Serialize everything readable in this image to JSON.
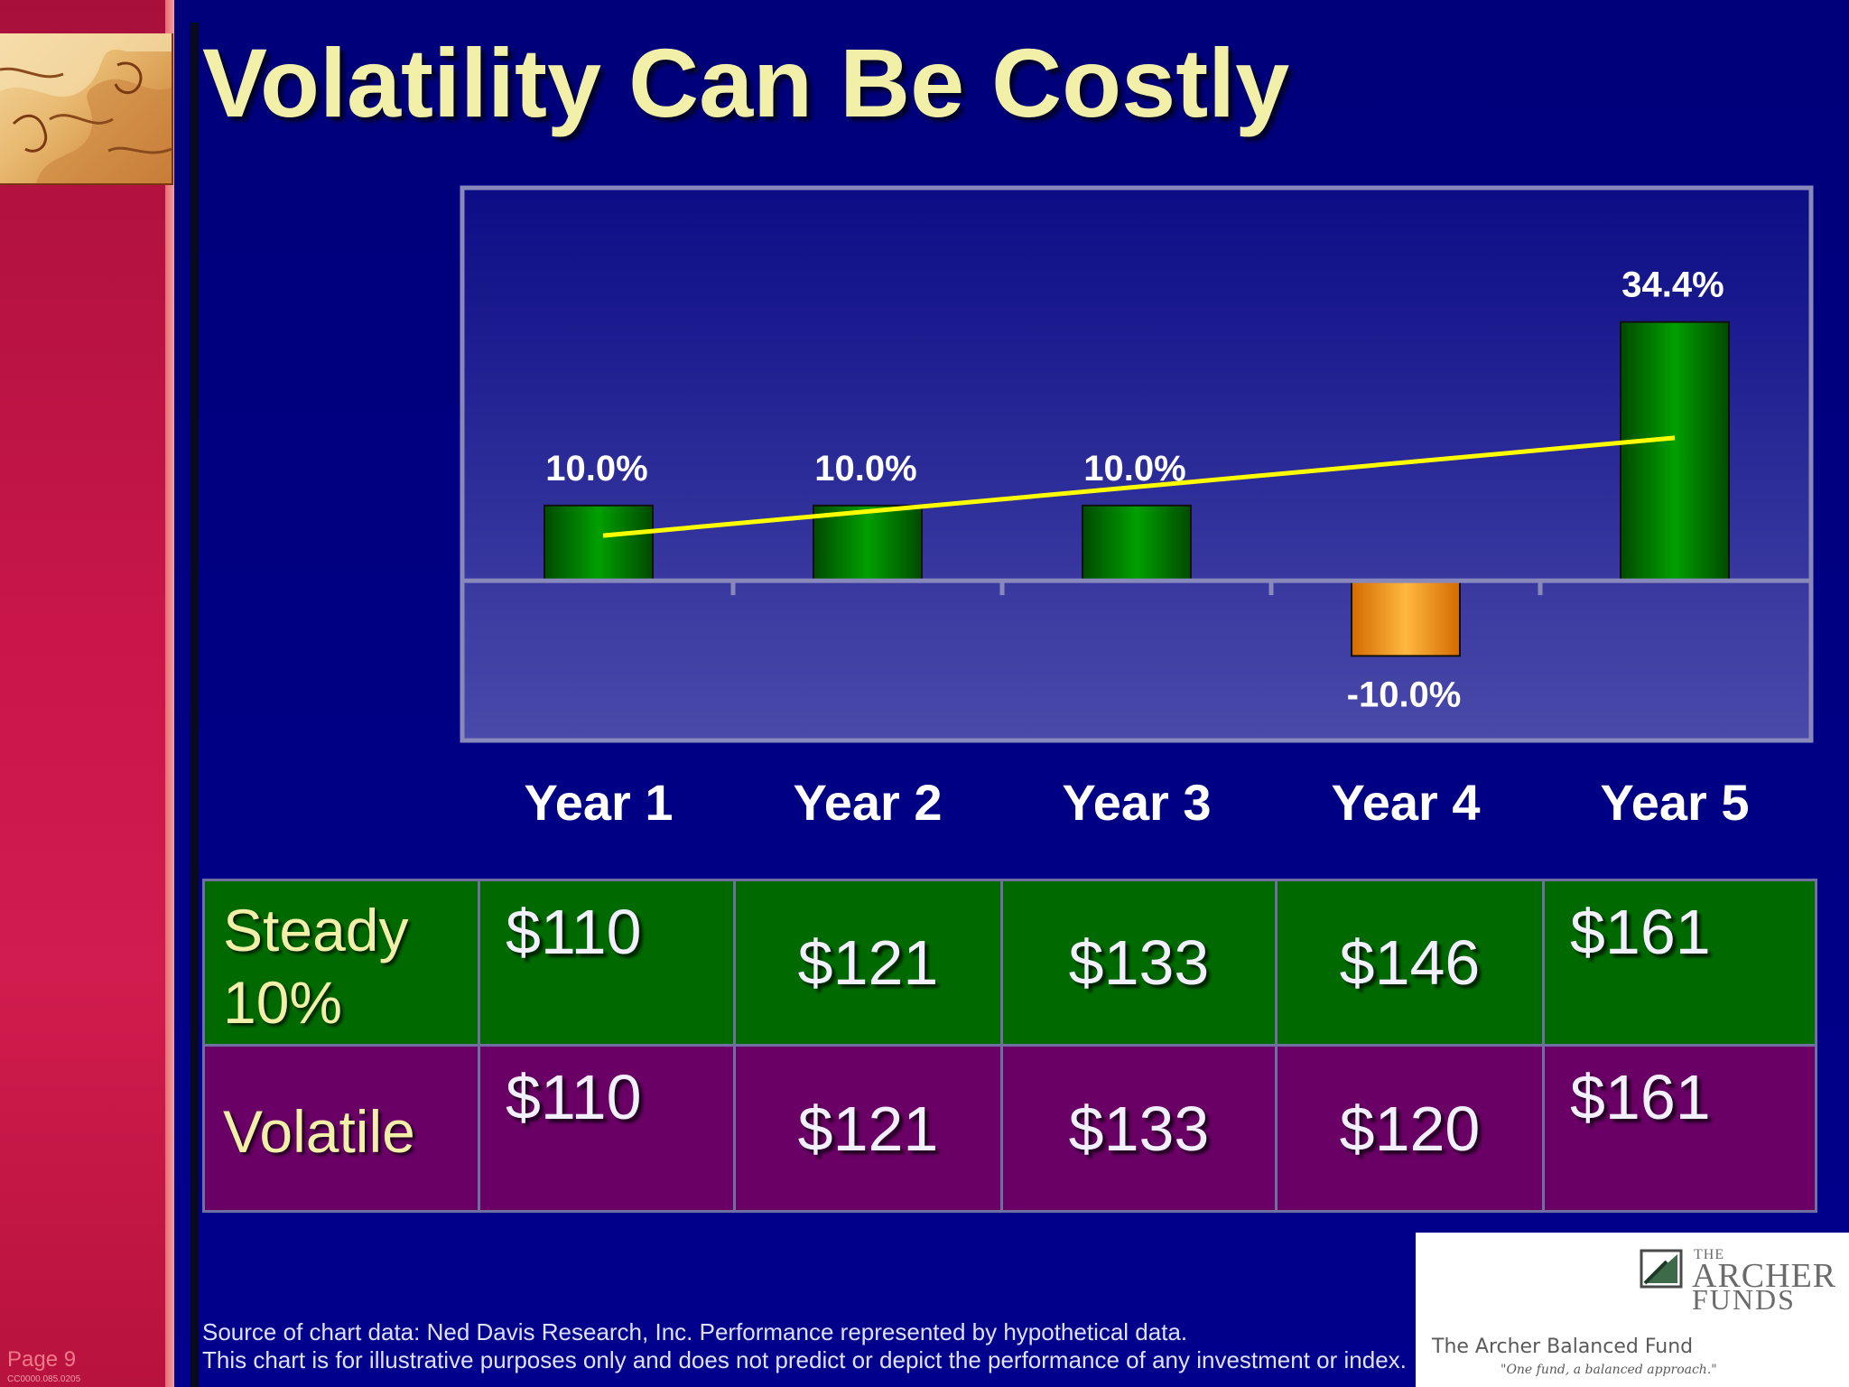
{
  "slide": {
    "title": "Volatility Can Be Costly",
    "page_label": "Page 9",
    "doc_code": "CC0000.085.0205"
  },
  "chart_data": {
    "type": "bar",
    "categories": [
      "Year 1",
      "Year 2",
      "Year 3",
      "Year 4",
      "Year 5"
    ],
    "values": [
      10.0,
      10.0,
      10.0,
      -10.0,
      34.4
    ],
    "data_labels": [
      "10.0%",
      "10.0%",
      "10.0%",
      "-10.0%",
      "34.4%"
    ],
    "ylim": [
      -21,
      52
    ],
    "bar_colors": [
      "#007000",
      "#007000",
      "#007000",
      "#ff9a10",
      "#007000"
    ],
    "trend_line": {
      "start": 6.0,
      "end": 19.0,
      "color": "#ffff00"
    },
    "grid": false,
    "legend": "none"
  },
  "table": {
    "rows": [
      {
        "label_line1": "Steady",
        "label_line2": "10%",
        "values": [
          "$110",
          "$121",
          "$133",
          "$146",
          "$161"
        ]
      },
      {
        "label": "Volatile",
        "values": [
          "$110",
          "$121",
          "$133",
          "$120",
          "$161"
        ]
      }
    ]
  },
  "footer": {
    "source_line1": "Source of chart data: Ned Davis Research, Inc. Performance represented by hypothetical data.",
    "source_line2": "This chart is for illustrative purposes only and does not predict or depict the performance of any investment or index."
  },
  "logo": {
    "the": "THE",
    "archer": "ARCHER",
    "funds": "FUNDS",
    "fund_name": "The Archer Balanced Fund",
    "tagline": "\"One fund, a balanced approach.\""
  },
  "colors": {
    "background": "#00007a",
    "title": "#f2f0a8",
    "steady_row": "#006a00",
    "volatile_row": "#6a0066",
    "positive_bar": "#007000",
    "negative_bar": "#ff9a10",
    "trend_line": "#ffff00"
  }
}
